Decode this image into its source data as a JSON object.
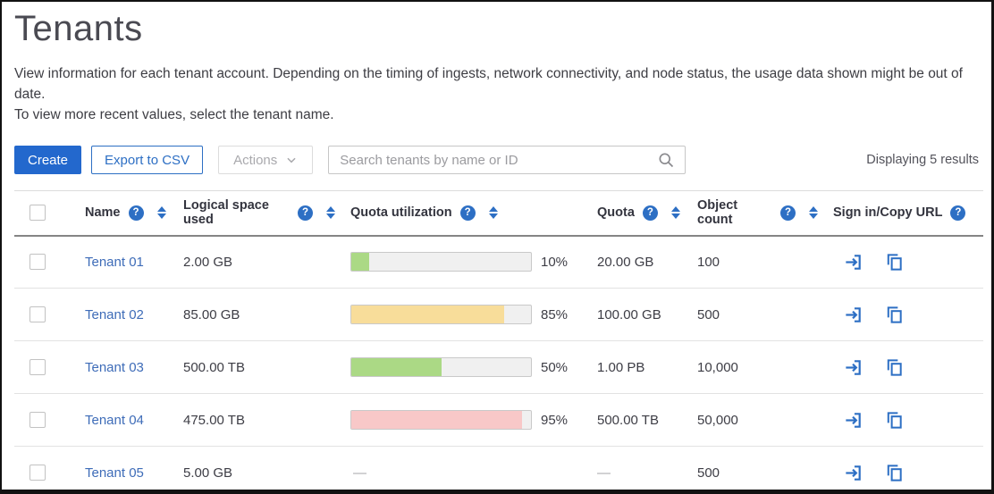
{
  "page": {
    "title": "Tenants",
    "description_line1": "View information for each tenant account. Depending on the timing of ingests, network connectivity, and node status, the usage data shown might be out of date.",
    "description_line2": "To view more recent values, select the tenant name.",
    "results_summary": "Displaying 5 results"
  },
  "toolbar": {
    "create_label": "Create",
    "export_csv_label": "Export to CSV",
    "actions_label": "Actions",
    "search_placeholder": "Search tenants by name or ID"
  },
  "table": {
    "em_dash": "—",
    "columns": [
      {
        "label": "Name"
      },
      {
        "label": "Logical space used"
      },
      {
        "label": "Quota utilization"
      },
      {
        "label": "Quota"
      },
      {
        "label": "Object count"
      },
      {
        "label": "Sign in/Copy URL"
      }
    ],
    "rows": [
      {
        "name": "Tenant 01",
        "logical_space_used": "2.00 GB",
        "quota_utilization_pct": 10,
        "quota_utilization_label": "10%",
        "bar_color": "#abd985",
        "quota": "20.00 GB",
        "object_count": "100"
      },
      {
        "name": "Tenant 02",
        "logical_space_used": "85.00 GB",
        "quota_utilization_pct": 85,
        "quota_utilization_label": "85%",
        "bar_color": "#f8dd9a",
        "quota": "100.00 GB",
        "object_count": "500"
      },
      {
        "name": "Tenant 03",
        "logical_space_used": "500.00 TB",
        "quota_utilization_pct": 50,
        "quota_utilization_label": "50%",
        "bar_color": "#abd985",
        "quota": "1.00 PB",
        "object_count": "10,000"
      },
      {
        "name": "Tenant 04",
        "logical_space_used": "475.00 TB",
        "quota_utilization_pct": 95,
        "quota_utilization_label": "95%",
        "bar_color": "#f8c8c8",
        "quota": "500.00 TB",
        "object_count": "50,000"
      },
      {
        "name": "Tenant 05",
        "logical_space_used": "5.00 GB",
        "quota_utilization_pct": null,
        "quota_utilization_label": "—",
        "bar_color": null,
        "quota": "—",
        "object_count": "500"
      }
    ]
  },
  "colors": {
    "primary_button_blue": "#2368cd",
    "accent_blue": "#2d6fc4",
    "link_blue": "#3e6cb8",
    "bar_green": "#abd985",
    "bar_yellow": "#f8dd9a",
    "bar_red": "#f8c8c8",
    "bar_track": "#f0f0f0"
  }
}
